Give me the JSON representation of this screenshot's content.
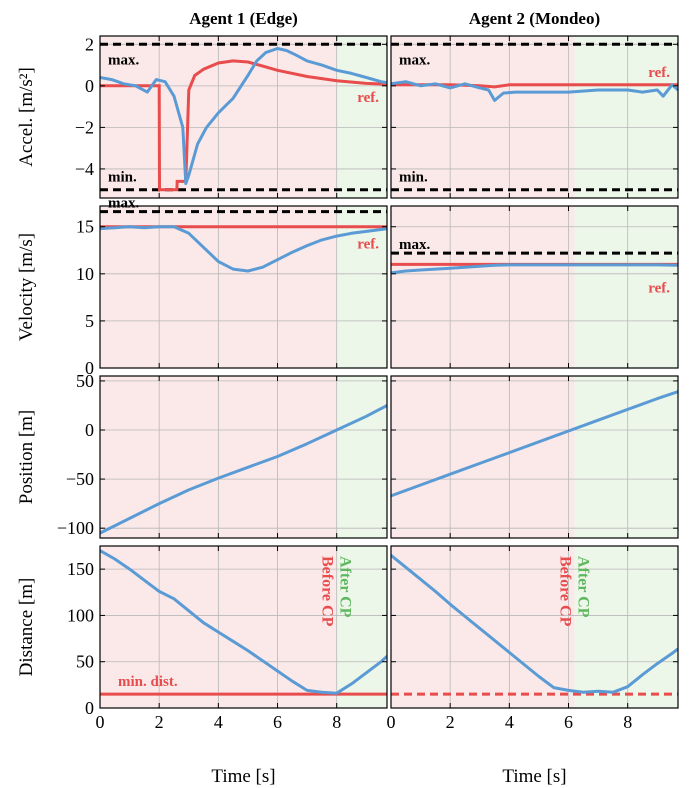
{
  "figure": {
    "columns": [
      "Agent 1 (Edge)",
      "Agent 2 (Mondeo)"
    ],
    "xlabel": "Time [s]",
    "xticks": [
      0,
      2,
      4,
      6,
      8
    ],
    "xlim": [
      0,
      9.7
    ],
    "colors": {
      "agent_trace": "#5b9bd5",
      "reference": "#e84c4c",
      "limit": "#000000",
      "before_cp_bg": "#fbe9e9",
      "after_cp_bg": "#ecf6e9",
      "before_cp_text": "#e84c4c",
      "after_cp_text": "#5fb85f",
      "grid": "#b8b8b8"
    }
  },
  "chart_data": [
    {
      "type": "line",
      "row": 0,
      "col": 0,
      "ylabel": "Accel. [m/s²]",
      "ylim": [
        -5.4,
        2.4
      ],
      "yticks": [
        2,
        0,
        -2,
        -4
      ],
      "cp_time": 8.0,
      "limits": {
        "max": 2,
        "min": -5,
        "max_label": "max.",
        "min_label": "min."
      },
      "reference": {
        "label": "ref.",
        "x": [
          0,
          2.0,
          2.01,
          2.6,
          2.61,
          2.9,
          3.0,
          3.2,
          3.5,
          4.0,
          4.5,
          5.0,
          5.5,
          6.0,
          7.0,
          8.0,
          9.0,
          9.7
        ],
        "y": [
          0,
          0,
          -5,
          -5,
          -4.6,
          -4.6,
          -0.2,
          0.5,
          0.8,
          1.1,
          1.2,
          1.15,
          0.95,
          0.75,
          0.45,
          0.25,
          0.12,
          0.08
        ]
      },
      "agent": {
        "x": [
          0,
          0.4,
          0.8,
          1.2,
          1.6,
          1.9,
          2.2,
          2.5,
          2.8,
          2.9,
          3.0,
          3.3,
          3.6,
          4.0,
          4.5,
          5.0,
          5.3,
          5.6,
          6.0,
          6.3,
          6.6,
          7.0,
          7.5,
          8.0,
          8.5,
          9.0,
          9.5,
          9.7
        ],
        "y": [
          0.4,
          0.3,
          0.1,
          0.0,
          -0.3,
          0.3,
          0.2,
          -0.5,
          -2.0,
          -4.7,
          -4.3,
          -2.8,
          -2.0,
          -1.3,
          -0.6,
          0.5,
          1.2,
          1.6,
          1.8,
          1.7,
          1.5,
          1.2,
          1.0,
          0.75,
          0.6,
          0.4,
          0.2,
          0.15
        ]
      }
    },
    {
      "type": "line",
      "row": 0,
      "col": 1,
      "ylabel": "",
      "ylim": [
        -5.4,
        2.4
      ],
      "yticks": [
        2,
        0,
        -2,
        -4
      ],
      "cp_time": 6.2,
      "limits": {
        "max": 2,
        "min": -5,
        "max_label": "max.",
        "min_label": "min."
      },
      "reference": {
        "label": "ref.",
        "x": [
          0,
          1,
          2,
          3,
          3.5,
          4,
          5,
          6,
          7,
          8,
          9,
          9.7
        ],
        "y": [
          0.05,
          0.05,
          0.05,
          0.0,
          -0.05,
          0.05,
          0.05,
          0.05,
          0.05,
          0.05,
          0.05,
          0.05
        ]
      },
      "agent": {
        "x": [
          0,
          0.5,
          1.0,
          1.5,
          2.0,
          2.5,
          3.0,
          3.3,
          3.5,
          3.8,
          4.2,
          5.0,
          6.0,
          7.0,
          8.0,
          8.5,
          9.0,
          9.2,
          9.5,
          9.7
        ],
        "y": [
          0.1,
          0.2,
          0.0,
          0.1,
          -0.1,
          0.1,
          -0.1,
          -0.2,
          -0.7,
          -0.35,
          -0.3,
          -0.3,
          -0.3,
          -0.2,
          -0.2,
          -0.3,
          -0.2,
          -0.5,
          0.05,
          -0.2
        ]
      }
    },
    {
      "type": "line",
      "row": 1,
      "col": 0,
      "ylabel": "Velocity [m/s]",
      "ylim": [
        0,
        17.2
      ],
      "yticks": [
        15,
        10,
        5,
        0
      ],
      "cp_time": 8.0,
      "limits": {
        "max": 16.6,
        "max_label": "max."
      },
      "reference": {
        "label": "ref.",
        "x": [
          0,
          9.7
        ],
        "y": [
          15,
          15
        ]
      },
      "agent": {
        "x": [
          0,
          0.5,
          1.0,
          1.5,
          2.0,
          2.5,
          3.0,
          3.5,
          4.0,
          4.5,
          5.0,
          5.5,
          6.0,
          6.5,
          7.0,
          7.5,
          8.0,
          8.5,
          9.0,
          9.5,
          9.7
        ],
        "y": [
          14.8,
          14.9,
          15.0,
          14.9,
          15.0,
          15.0,
          14.3,
          12.8,
          11.3,
          10.5,
          10.3,
          10.7,
          11.5,
          12.3,
          13.0,
          13.6,
          14.0,
          14.3,
          14.5,
          14.7,
          14.8
        ]
      }
    },
    {
      "type": "line",
      "row": 1,
      "col": 1,
      "ylabel": "",
      "ylim": [
        0,
        17.2
      ],
      "yticks": [
        15,
        10,
        5,
        0
      ],
      "cp_time": 6.2,
      "limits": {
        "max": 12.2,
        "max_label": "max."
      },
      "reference": {
        "label": "ref.",
        "x": [
          0,
          9.7
        ],
        "y": [
          11,
          11
        ]
      },
      "agent": {
        "x": [
          0,
          0.5,
          1.0,
          1.5,
          2.0,
          2.5,
          3.0,
          3.5,
          4.0,
          5.0,
          6.0,
          7.0,
          8.0,
          9.0,
          9.7
        ],
        "y": [
          10.1,
          10.3,
          10.4,
          10.5,
          10.6,
          10.7,
          10.8,
          10.9,
          10.95,
          10.95,
          10.95,
          10.95,
          10.95,
          10.95,
          10.9
        ]
      }
    },
    {
      "type": "line",
      "row": 2,
      "col": 0,
      "ylabel": "Position [m]",
      "ylim": [
        -110,
        55
      ],
      "yticks": [
        50,
        0,
        -50,
        -100
      ],
      "cp_time": 8.0,
      "agent": {
        "x": [
          0,
          1,
          2,
          3,
          4,
          5,
          6,
          7,
          8,
          9,
          9.7
        ],
        "y": [
          -105,
          -90,
          -75,
          -61,
          -49,
          -38,
          -27,
          -14,
          0,
          14,
          25
        ]
      }
    },
    {
      "type": "line",
      "row": 2,
      "col": 1,
      "ylabel": "",
      "ylim": [
        -110,
        55
      ],
      "yticks": [
        50,
        0,
        -50,
        -100
      ],
      "cp_time": 6.2,
      "agent": {
        "x": [
          0,
          1,
          2,
          3,
          4,
          5,
          6,
          7,
          8,
          9,
          9.7
        ],
        "y": [
          -67,
          -56,
          -45,
          -34,
          -23,
          -12,
          -1,
          10,
          21,
          32,
          39
        ]
      }
    },
    {
      "type": "line",
      "row": 3,
      "col": 0,
      "ylabel": "Distance [m]",
      "ylim": [
        0,
        175
      ],
      "yticks": [
        150,
        100,
        50,
        0
      ],
      "cp_time": 8.0,
      "cp_labels": {
        "before": "Before CP",
        "after": "After CP"
      },
      "min_distance": {
        "value": 15,
        "label": "min. dist.",
        "style": "solid"
      },
      "agent": {
        "x": [
          0,
          0.5,
          1.0,
          1.5,
          2.0,
          2.5,
          3.0,
          3.5,
          4.0,
          4.5,
          5.0,
          5.5,
          6.0,
          6.5,
          7.0,
          7.5,
          8.0,
          8.5,
          9.0,
          9.5,
          9.7
        ],
        "y": [
          170,
          161,
          150,
          138,
          126,
          118,
          105,
          92,
          82,
          72,
          62,
          51,
          40,
          29,
          19,
          17,
          16,
          26,
          38,
          50,
          56
        ]
      }
    },
    {
      "type": "line",
      "row": 3,
      "col": 1,
      "ylabel": "",
      "ylim": [
        0,
        175
      ],
      "yticks": [
        150,
        100,
        50,
        0
      ],
      "cp_time": 6.2,
      "cp_labels": {
        "before": "Before CP",
        "after": "After CP"
      },
      "min_distance": {
        "value": 15,
        "style": "dashed"
      },
      "agent": {
        "x": [
          0,
          0.5,
          1.0,
          1.5,
          2.0,
          2.5,
          3.0,
          3.5,
          4.0,
          4.5,
          5.0,
          5.5,
          6.0,
          6.5,
          7.0,
          7.5,
          8.0,
          8.5,
          9.0,
          9.5,
          9.7
        ],
        "y": [
          165,
          152,
          139,
          126,
          112,
          99,
          86,
          73,
          60,
          47,
          34,
          22,
          19,
          17,
          18,
          17,
          23,
          36,
          48,
          59,
          64
        ]
      }
    }
  ]
}
